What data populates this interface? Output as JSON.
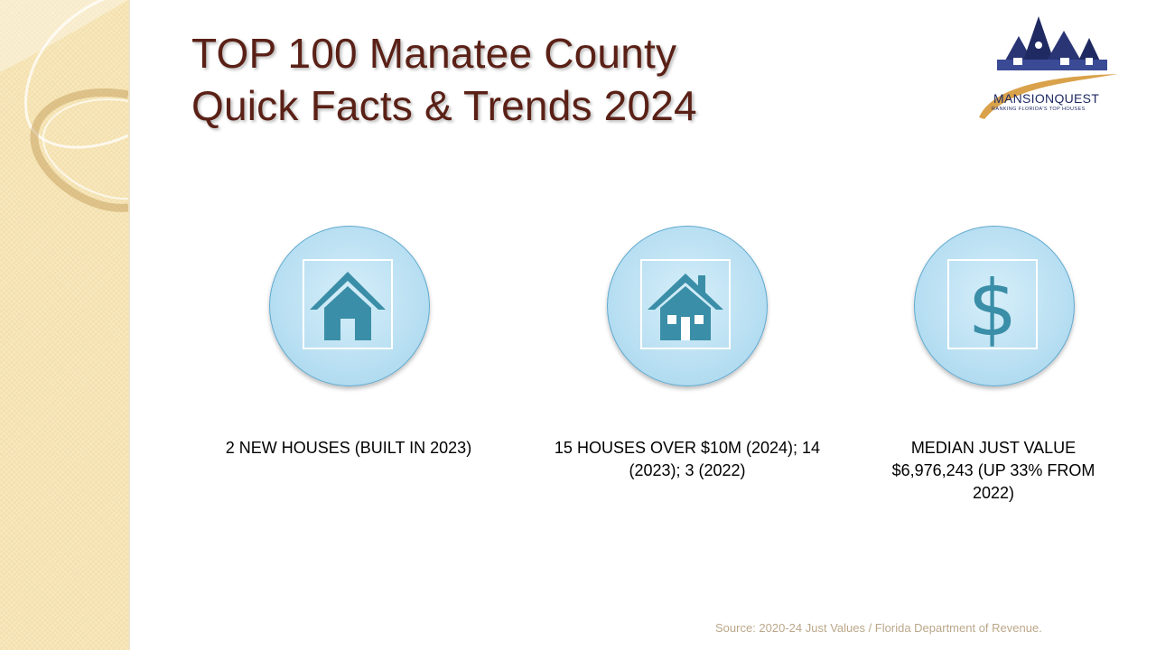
{
  "slide": {
    "title_line1": "TOP 100 Manatee County",
    "title_line2": "Quick Facts & Trends 2024",
    "source": "Source: 2020-24 Just Values / Florida Department of Revenue."
  },
  "logo": {
    "name": "MANSIONQUEST",
    "tagline": "RANKING FLORIDA'S TOP HOUSES",
    "colors": {
      "navy": "#1f2a63",
      "gold": "#d9a24a"
    }
  },
  "facts": [
    {
      "icon": "house-icon",
      "caption": "2 NEW HOUSES (BUILT IN 2023)"
    },
    {
      "icon": "house-with-windows-icon",
      "caption": "15 HOUSES OVER $10M (2024); 14 (2023); 3 (2022)"
    },
    {
      "icon": "dollar-sign-icon",
      "caption": "MEDIAN JUST VALUE $6,976,243 (UP 33% FROM 2022)"
    }
  ],
  "colors": {
    "title": "#5a2016",
    "icon": "#3a8ea7",
    "circle": "#b8dff2",
    "source": "#bba78a"
  }
}
